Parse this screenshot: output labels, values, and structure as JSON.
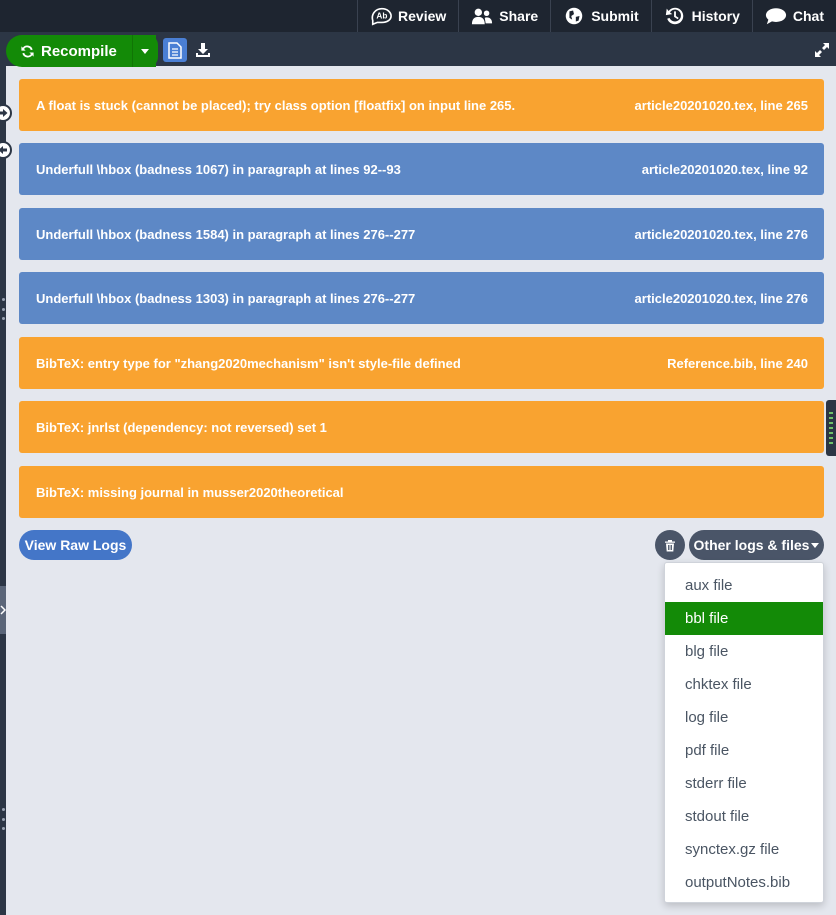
{
  "topnav": {
    "items": [
      {
        "label": "Review",
        "icon": "review-icon"
      },
      {
        "label": "Share",
        "icon": "users-icon"
      },
      {
        "label": "Submit",
        "icon": "globe-icon"
      },
      {
        "label": "History",
        "icon": "history-icon"
      },
      {
        "label": "Chat",
        "icon": "chat-icon"
      }
    ]
  },
  "toolbar": {
    "recompile_label": "Recompile"
  },
  "logs": [
    {
      "level": "warning",
      "message": "A float is stuck (cannot be placed); try class option [floatfix] on input line 265.",
      "location": "article20201020.tex, line 265"
    },
    {
      "level": "info",
      "message": "Underfull \\hbox (badness 1067) in paragraph at lines 92--93",
      "location": "article20201020.tex, line 92"
    },
    {
      "level": "info",
      "message": "Underfull \\hbox (badness 1584) in paragraph at lines 276--277",
      "location": "article20201020.tex, line 276"
    },
    {
      "level": "info",
      "message": "Underfull \\hbox (badness 1303) in paragraph at lines 276--277",
      "location": "article20201020.tex, line 276"
    },
    {
      "level": "warning",
      "message": "BibTeX: entry type for \"zhang2020mechanism\" isn't style-file defined",
      "location": "Reference.bib, line 240"
    },
    {
      "level": "warning",
      "message": "BibTeX: jnrlst (dependency: not reversed) set 1",
      "location": ""
    },
    {
      "level": "warning",
      "message": "BibTeX: missing journal in musser2020theoretical",
      "location": ""
    }
  ],
  "actions": {
    "view_raw_logs": "View Raw Logs",
    "other_logs": "Other logs & files"
  },
  "dropdown": {
    "selected": "bbl file",
    "items": [
      "aux file",
      "bbl file",
      "blg file",
      "chktex file",
      "log file",
      "pdf file",
      "stderr file",
      "stdout file",
      "synctex.gz file",
      "outputNotes.bib"
    ]
  },
  "colors": {
    "warning": "#f9a330",
    "info": "#5d88c6",
    "primary_green": "#138a07",
    "nav_bg": "#1e2530"
  }
}
